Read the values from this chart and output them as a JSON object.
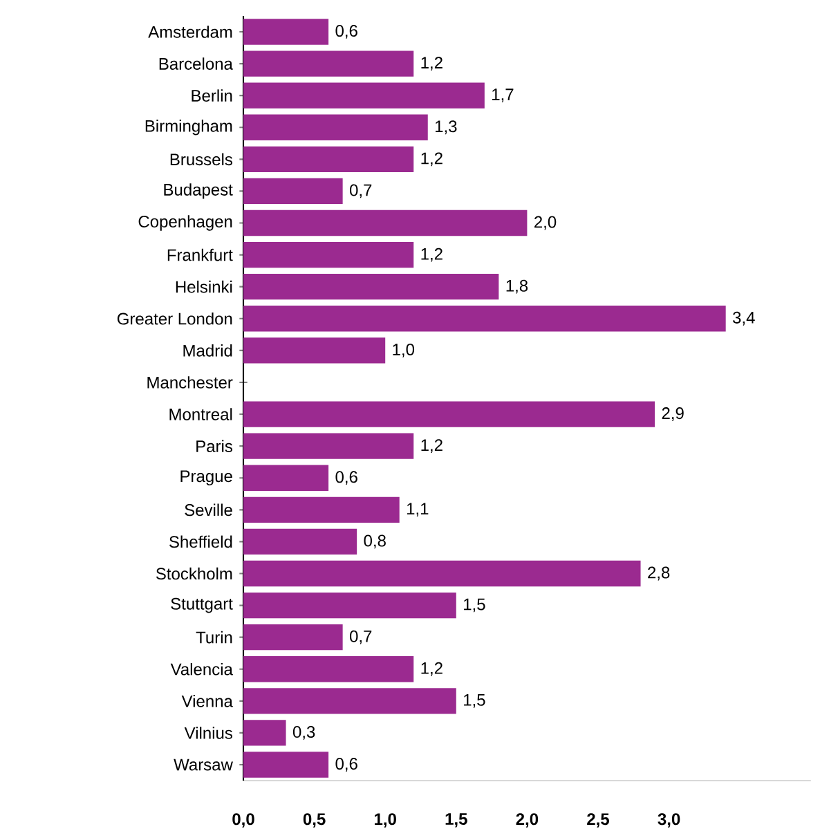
{
  "chart_data": {
    "type": "bar",
    "orientation": "horizontal",
    "color": "#9b2a90",
    "categories": [
      "Amsterdam",
      "Barcelona",
      "Berlin",
      "Birmingham",
      "Brussels",
      "Budapest",
      "Copenhagen",
      "Frankfurt",
      "Helsinki",
      "Greater London",
      "Madrid",
      "Manchester",
      "Montreal",
      "Paris",
      "Prague",
      "Seville",
      "Sheffield",
      "Stockholm",
      "Stuttgart",
      "Turin",
      "Valencia",
      "Vienna",
      "Vilnius",
      "Warsaw"
    ],
    "values": [
      0.6,
      1.2,
      1.7,
      1.3,
      1.2,
      0.7,
      2.0,
      1.2,
      1.8,
      3.4,
      1.0,
      null,
      2.9,
      1.2,
      0.6,
      1.1,
      0.8,
      2.8,
      1.5,
      0.7,
      1.2,
      1.5,
      0.3,
      0.6
    ],
    "value_labels": [
      "0,6",
      "1,2",
      "1,7",
      "1,3",
      "1,2",
      "0,7",
      "2,0",
      "1,2",
      "1,8",
      "3,4",
      "1,0",
      null,
      "2,9",
      "1,2",
      "0,6",
      "1,1",
      "0,8",
      "2,8",
      "1,5",
      "0,7",
      "1,2",
      "1,5",
      "0,3",
      "0,6"
    ],
    "xlim": [
      0,
      4
    ],
    "xticks": [
      {
        "value": 0,
        "label": "0,0"
      },
      {
        "value": 0.5,
        "label": "0,5"
      },
      {
        "value": 1,
        "label": "1,0"
      },
      {
        "value": 1.5,
        "label": "1,5"
      },
      {
        "value": 2,
        "label": "2,0"
      },
      {
        "value": 2.5,
        "label": "2,5"
      },
      {
        "value": 3,
        "label": "3,0"
      }
    ]
  }
}
